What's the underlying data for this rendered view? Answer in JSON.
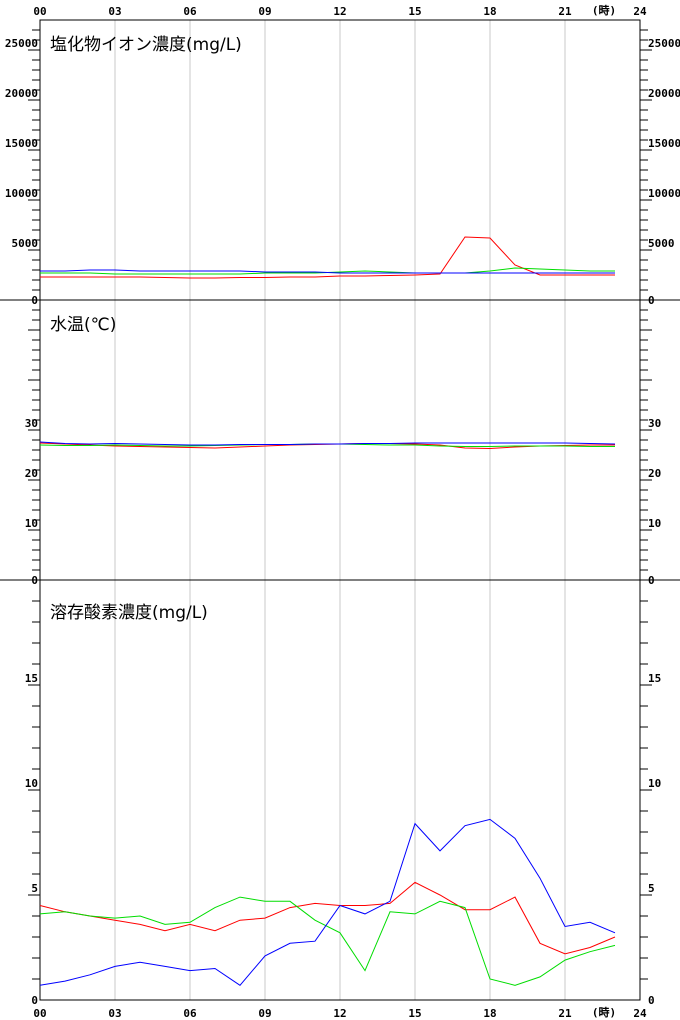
{
  "time_axis": {
    "top_labels": [
      "00",
      "03",
      "06",
      "09",
      "12",
      "15",
      "18",
      "21",
      "24"
    ],
    "bottom_labels": [
      "00",
      "03",
      "06",
      "09",
      "12",
      "15",
      "18",
      "21",
      "24"
    ],
    "unit": "(時)"
  },
  "colors": {
    "red": "#ff0000",
    "green": "#00dd00",
    "blue": "#0000ff",
    "grid": "#c8c8c8"
  },
  "chart_data": [
    {
      "type": "line",
      "title": "塩化物イオン濃度(mg/L)",
      "x": [
        0,
        1,
        2,
        3,
        4,
        5,
        6,
        7,
        8,
        9,
        10,
        11,
        12,
        13,
        14,
        15,
        16,
        17,
        18,
        19,
        20,
        21,
        22,
        23
      ],
      "ylim": [
        0,
        28000
      ],
      "yticks": [
        0,
        5000,
        10000,
        15000,
        20000,
        25000
      ],
      "ytick_labels": [
        "0",
        "5000",
        "10000",
        "15000",
        "20000",
        "25000"
      ],
      "grid": true,
      "series": [
        {
          "color": "red",
          "values": [
            2300,
            2300,
            2300,
            2300,
            2300,
            2250,
            2200,
            2200,
            2250,
            2250,
            2300,
            2300,
            2400,
            2400,
            2450,
            2500,
            2600,
            6300,
            6200,
            3500,
            2500,
            2500,
            2500,
            2500
          ]
        },
        {
          "color": "green",
          "values": [
            2700,
            2700,
            2700,
            2600,
            2600,
            2600,
            2600,
            2600,
            2600,
            2700,
            2700,
            2700,
            2800,
            2900,
            2800,
            2700,
            2700,
            2700,
            2900,
            3200,
            3100,
            3000,
            2900,
            2900
          ]
        },
        {
          "color": "blue",
          "values": [
            2900,
            2900,
            3000,
            3000,
            2900,
            2900,
            2900,
            2900,
            2900,
            2800,
            2800,
            2800,
            2700,
            2700,
            2700,
            2700,
            2700,
            2700,
            2700,
            2700,
            2700,
            2700,
            2700,
            2700
          ]
        }
      ]
    },
    {
      "type": "line",
      "title": "水温(℃)",
      "x": [
        0,
        1,
        2,
        3,
        4,
        5,
        6,
        7,
        8,
        9,
        10,
        11,
        12,
        13,
        14,
        15,
        16,
        17,
        18,
        19,
        20,
        21,
        22,
        23
      ],
      "ylim": [
        0,
        56
      ],
      "yticks": [
        0,
        10,
        20,
        30
      ],
      "ytick_labels": [
        "0",
        "10",
        "20",
        "30"
      ],
      "grid": true,
      "series": [
        {
          "color": "red",
          "values": [
            27.4,
            27.2,
            27.0,
            26.8,
            26.7,
            26.6,
            26.5,
            26.4,
            26.6,
            26.8,
            27.0,
            27.1,
            27.2,
            27.3,
            27.3,
            27.2,
            27.0,
            26.4,
            26.3,
            26.6,
            26.8,
            26.9,
            27.0,
            27.0
          ]
        },
        {
          "color": "green",
          "values": [
            27.0,
            26.9,
            26.9,
            27.0,
            26.9,
            26.8,
            26.8,
            26.9,
            27.0,
            27.1,
            27.1,
            27.2,
            27.2,
            27.1,
            27.0,
            27.0,
            26.8,
            26.7,
            26.7,
            26.8,
            26.8,
            26.8,
            26.7,
            26.7
          ]
        },
        {
          "color": "blue",
          "values": [
            27.6,
            27.3,
            27.2,
            27.3,
            27.2,
            27.1,
            27.0,
            27.0,
            27.1,
            27.1,
            27.1,
            27.2,
            27.2,
            27.3,
            27.3,
            27.4,
            27.4,
            27.4,
            27.4,
            27.4,
            27.4,
            27.4,
            27.3,
            27.2
          ]
        }
      ]
    },
    {
      "type": "line",
      "title": "溶存酸素濃度(mg/L)",
      "x": [
        0,
        1,
        2,
        3,
        4,
        5,
        6,
        7,
        8,
        9,
        10,
        11,
        12,
        13,
        14,
        15,
        16,
        17,
        18,
        19,
        20,
        21,
        22,
        23
      ],
      "ylim": [
        0,
        20
      ],
      "yticks": [
        0,
        5,
        10,
        15
      ],
      "ytick_labels": [
        "0",
        "5",
        "10",
        "15"
      ],
      "grid": true,
      "series": [
        {
          "color": "red",
          "values": [
            4.5,
            4.2,
            4.0,
            3.8,
            3.6,
            3.3,
            3.6,
            3.3,
            3.8,
            3.9,
            4.4,
            4.6,
            4.5,
            4.5,
            4.6,
            5.6,
            5.0,
            4.3,
            4.3,
            4.9,
            2.7,
            2.2,
            2.5,
            3.0
          ]
        },
        {
          "color": "green",
          "values": [
            4.1,
            4.2,
            4.0,
            3.9,
            4.0,
            3.6,
            3.7,
            4.4,
            4.9,
            4.7,
            4.7,
            3.8,
            3.2,
            1.4,
            4.2,
            4.1,
            4.7,
            4.4,
            1.0,
            0.7,
            1.1,
            1.9,
            2.3,
            2.6
          ]
        },
        {
          "color": "blue",
          "values": [
            0.7,
            0.9,
            1.2,
            1.6,
            1.8,
            1.6,
            1.4,
            1.5,
            0.7,
            2.1,
            2.7,
            2.8,
            4.5,
            4.1,
            4.7,
            8.4,
            7.1,
            8.3,
            8.6,
            7.7,
            5.8,
            3.5,
            3.7,
            3.2
          ]
        }
      ]
    }
  ]
}
